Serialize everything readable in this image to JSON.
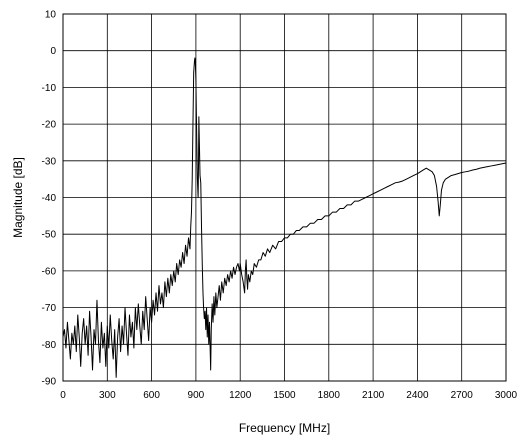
{
  "chart_data": {
    "type": "line",
    "title": "",
    "xlabel": "Frequency [MHz]",
    "ylabel": "Magnitude [dB]",
    "xlim": [
      0,
      3000
    ],
    "ylim": [
      -90,
      10
    ],
    "x_ticks": [
      0,
      300,
      600,
      900,
      1200,
      1500,
      1800,
      2100,
      2400,
      2700,
      3000
    ],
    "x_tick_labels": [
      "0",
      "300",
      "600",
      "900",
      "1200",
      "1500",
      "1800",
      "2100",
      "2400",
      "2700",
      "3000"
    ],
    "y_ticks": [
      10,
      0,
      -10,
      -20,
      -30,
      -40,
      -50,
      -60,
      -70,
      -80,
      -90
    ],
    "y_tick_labels": [
      "10",
      "0",
      "-10",
      "-20",
      "-30",
      "-40",
      "-50",
      "-60",
      "-70",
      "-80",
      "-90"
    ],
    "grid": true,
    "colors": {
      "line": "#000000",
      "grid": "#000000",
      "axis": "#000000"
    },
    "series": [
      {
        "points": [
          [
            0,
            -78
          ],
          [
            10,
            -76
          ],
          [
            20,
            -81
          ],
          [
            30,
            -74
          ],
          [
            40,
            -79
          ],
          [
            50,
            -84
          ],
          [
            60,
            -77
          ],
          [
            70,
            -80
          ],
          [
            80,
            -75
          ],
          [
            90,
            -82
          ],
          [
            100,
            -72
          ],
          [
            110,
            -78
          ],
          [
            120,
            -86
          ],
          [
            130,
            -77
          ],
          [
            140,
            -73
          ],
          [
            150,
            -80
          ],
          [
            160,
            -75
          ],
          [
            170,
            -83
          ],
          [
            180,
            -71
          ],
          [
            190,
            -78
          ],
          [
            200,
            -87
          ],
          [
            210,
            -76
          ],
          [
            220,
            -80
          ],
          [
            230,
            -68
          ],
          [
            240,
            -79
          ],
          [
            250,
            -85
          ],
          [
            260,
            -74
          ],
          [
            270,
            -81
          ],
          [
            280,
            -77
          ],
          [
            290,
            -86
          ],
          [
            300,
            -75
          ],
          [
            310,
            -81
          ],
          [
            320,
            -72
          ],
          [
            330,
            -79
          ],
          [
            340,
            -84
          ],
          [
            350,
            -76
          ],
          [
            360,
            -89
          ],
          [
            370,
            -78
          ],
          [
            380,
            -73
          ],
          [
            390,
            -82
          ],
          [
            400,
            -75
          ],
          [
            410,
            -80
          ],
          [
            420,
            -70
          ],
          [
            430,
            -77
          ],
          [
            440,
            -83
          ],
          [
            450,
            -72
          ],
          [
            460,
            -78
          ],
          [
            470,
            -74
          ],
          [
            480,
            -81
          ],
          [
            490,
            -70
          ],
          [
            500,
            -76
          ],
          [
            510,
            -69
          ],
          [
            520,
            -75
          ],
          [
            530,
            -80
          ],
          [
            540,
            -71
          ],
          [
            550,
            -76
          ],
          [
            560,
            -67
          ],
          [
            570,
            -73
          ],
          [
            580,
            -79
          ],
          [
            590,
            -70
          ],
          [
            600,
            -74
          ],
          [
            610,
            -68
          ],
          [
            620,
            -72
          ],
          [
            630,
            -66
          ],
          [
            640,
            -71
          ],
          [
            650,
            -64
          ],
          [
            660,
            -69
          ],
          [
            670,
            -66
          ],
          [
            680,
            -70
          ],
          [
            690,
            -63
          ],
          [
            700,
            -67
          ],
          [
            710,
            -62
          ],
          [
            720,
            -66
          ],
          [
            730,
            -61
          ],
          [
            740,
            -64
          ],
          [
            750,
            -60
          ],
          [
            760,
            -63
          ],
          [
            770,
            -58
          ],
          [
            780,
            -61
          ],
          [
            790,
            -57
          ],
          [
            800,
            -59
          ],
          [
            810,
            -55
          ],
          [
            820,
            -58
          ],
          [
            830,
            -53
          ],
          [
            840,
            -56
          ],
          [
            850,
            -51
          ],
          [
            860,
            -54
          ],
          [
            865,
            -48
          ],
          [
            870,
            -44
          ],
          [
            875,
            -35
          ],
          [
            880,
            -20
          ],
          [
            885,
            -6
          ],
          [
            890,
            -3
          ],
          [
            893,
            -2
          ],
          [
            896,
            -3
          ],
          [
            900,
            -8
          ],
          [
            905,
            -22
          ],
          [
            910,
            -35
          ],
          [
            915,
            -40
          ],
          [
            918,
            -30
          ],
          [
            920,
            -18
          ],
          [
            924,
            -26
          ],
          [
            928,
            -34
          ],
          [
            933,
            -36
          ],
          [
            938,
            -48
          ],
          [
            943,
            -58
          ],
          [
            948,
            -66
          ],
          [
            952,
            -70
          ],
          [
            957,
            -73
          ],
          [
            962,
            -71
          ],
          [
            967,
            -76
          ],
          [
            972,
            -70
          ],
          [
            977,
            -78
          ],
          [
            982,
            -72
          ],
          [
            987,
            -80
          ],
          [
            992,
            -74
          ],
          [
            997,
            -82
          ],
          [
            1000,
            -87
          ],
          [
            1004,
            -76
          ],
          [
            1010,
            -69
          ],
          [
            1016,
            -74
          ],
          [
            1022,
            -67
          ],
          [
            1028,
            -72
          ],
          [
            1035,
            -66
          ],
          [
            1042,
            -70
          ],
          [
            1050,
            -67
          ],
          [
            1058,
            -64
          ],
          [
            1066,
            -68
          ],
          [
            1075,
            -63
          ],
          [
            1085,
            -66
          ],
          [
            1095,
            -62
          ],
          [
            1105,
            -64
          ],
          [
            1115,
            -61
          ],
          [
            1125,
            -63
          ],
          [
            1135,
            -60
          ],
          [
            1145,
            -62
          ],
          [
            1155,
            -59
          ],
          [
            1165,
            -61
          ],
          [
            1175,
            -59
          ],
          [
            1185,
            -58
          ],
          [
            1195,
            -60
          ],
          [
            1200,
            -58
          ],
          [
            1210,
            -61
          ],
          [
            1220,
            -63
          ],
          [
            1230,
            -66
          ],
          [
            1235,
            -60
          ],
          [
            1240,
            -57
          ],
          [
            1245,
            -62
          ],
          [
            1250,
            -65
          ],
          [
            1255,
            -61
          ],
          [
            1265,
            -63
          ],
          [
            1275,
            -60
          ],
          [
            1285,
            -61
          ],
          [
            1295,
            -58
          ],
          [
            1310,
            -59
          ],
          [
            1325,
            -57
          ],
          [
            1340,
            -57
          ],
          [
            1355,
            -55
          ],
          [
            1370,
            -56
          ],
          [
            1385,
            -54
          ],
          [
            1400,
            -55
          ],
          [
            1420,
            -53
          ],
          [
            1440,
            -54
          ],
          [
            1460,
            -52
          ],
          [
            1480,
            -52
          ],
          [
            1500,
            -51
          ],
          [
            1520,
            -51
          ],
          [
            1540,
            -50
          ],
          [
            1560,
            -50
          ],
          [
            1580,
            -49
          ],
          [
            1600,
            -49
          ],
          [
            1625,
            -48
          ],
          [
            1650,
            -48
          ],
          [
            1675,
            -47
          ],
          [
            1700,
            -47
          ],
          [
            1725,
            -46
          ],
          [
            1750,
            -46
          ],
          [
            1775,
            -45
          ],
          [
            1800,
            -45
          ],
          [
            1825,
            -44
          ],
          [
            1850,
            -44
          ],
          [
            1875,
            -43
          ],
          [
            1900,
            -43
          ],
          [
            1925,
            -42
          ],
          [
            1950,
            -42
          ],
          [
            1975,
            -41
          ],
          [
            2000,
            -41
          ],
          [
            2025,
            -40.5
          ],
          [
            2050,
            -40
          ],
          [
            2075,
            -39.5
          ],
          [
            2100,
            -39
          ],
          [
            2125,
            -38.5
          ],
          [
            2150,
            -38
          ],
          [
            2175,
            -37.5
          ],
          [
            2200,
            -37
          ],
          [
            2225,
            -36.5
          ],
          [
            2250,
            -36
          ],
          [
            2275,
            -35.8
          ],
          [
            2300,
            -35.5
          ],
          [
            2325,
            -35
          ],
          [
            2350,
            -34.5
          ],
          [
            2375,
            -34
          ],
          [
            2400,
            -33.5
          ],
          [
            2420,
            -33
          ],
          [
            2440,
            -32.5
          ],
          [
            2460,
            -32
          ],
          [
            2480,
            -32.5
          ],
          [
            2500,
            -33
          ],
          [
            2515,
            -34
          ],
          [
            2530,
            -37
          ],
          [
            2540,
            -41
          ],
          [
            2548,
            -45
          ],
          [
            2555,
            -42
          ],
          [
            2563,
            -38
          ],
          [
            2575,
            -36
          ],
          [
            2590,
            -35
          ],
          [
            2610,
            -34.5
          ],
          [
            2630,
            -34
          ],
          [
            2650,
            -33.8
          ],
          [
            2675,
            -33.5
          ],
          [
            2700,
            -33.2
          ],
          [
            2725,
            -33
          ],
          [
            2750,
            -32.8
          ],
          [
            2775,
            -32.5
          ],
          [
            2800,
            -32.3
          ],
          [
            2825,
            -32
          ],
          [
            2850,
            -31.8
          ],
          [
            2875,
            -31.6
          ],
          [
            2900,
            -31.4
          ],
          [
            2925,
            -31.2
          ],
          [
            2950,
            -31
          ],
          [
            2975,
            -30.8
          ],
          [
            3000,
            -30.6
          ]
        ]
      }
    ]
  }
}
